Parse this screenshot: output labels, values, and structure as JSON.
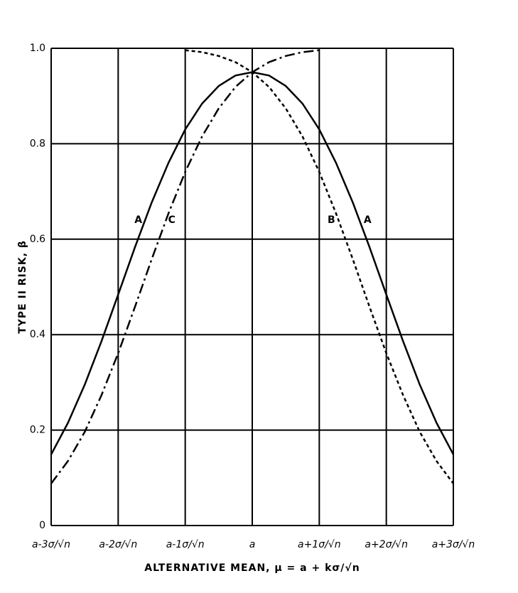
{
  "chart_data": {
    "type": "line",
    "x_label": "ALTERNATIVE MEAN, μ = a + kσ/√n",
    "y_label": "TYPE II RISK, β",
    "x": [
      -3,
      -2.75,
      -2.5,
      -2.25,
      -2,
      -1.75,
      -1.5,
      -1.25,
      -1,
      -0.75,
      -0.5,
      -0.25,
      0,
      0.25,
      0.5,
      0.75,
      1,
      1.25,
      1.5,
      1.75,
      2,
      2.25,
      2.5,
      2.75,
      3
    ],
    "series": [
      {
        "name": "A",
        "color": "#000000",
        "dash": "solid",
        "values": [
          0.149,
          0.215,
          0.295,
          0.386,
          0.484,
          0.583,
          0.677,
          0.76,
          0.83,
          0.884,
          0.921,
          0.943,
          0.95,
          0.943,
          0.921,
          0.884,
          0.83,
          0.76,
          0.677,
          0.583,
          0.484,
          0.386,
          0.295,
          0.215,
          0.149
        ]
      },
      {
        "name": "B",
        "color": "#000000",
        "dash": "dashed",
        "values": [
          null,
          null,
          null,
          null,
          null,
          null,
          null,
          null,
          0.996,
          0.992,
          0.984,
          0.971,
          0.95,
          0.919,
          0.874,
          0.815,
          0.741,
          0.654,
          0.558,
          0.458,
          0.361,
          0.273,
          0.196,
          0.135,
          0.088
        ]
      },
      {
        "name": "C",
        "color": "#000000",
        "dash": "dash-dot",
        "values": [
          0.088,
          0.135,
          0.196,
          0.273,
          0.361,
          0.458,
          0.558,
          0.654,
          0.741,
          0.815,
          0.874,
          0.919,
          0.95,
          0.971,
          0.984,
          0.992,
          0.996,
          null,
          null,
          null,
          null,
          null,
          null,
          null,
          null
        ]
      }
    ],
    "xlim": [
      -3,
      3
    ],
    "ylim": [
      0,
      1
    ],
    "xticks": [
      {
        "value": -3,
        "label": "a-3σ/√n"
      },
      {
        "value": -2,
        "label": "a-2σ/√n"
      },
      {
        "value": -1,
        "label": "a-1σ/√n"
      },
      {
        "value": 0,
        "label": "a"
      },
      {
        "value": 1,
        "label": "a+1σ/√n"
      },
      {
        "value": 2,
        "label": "a+2σ/√n"
      },
      {
        "value": 3,
        "label": "a+3σ/√n"
      }
    ],
    "yticks": [
      0,
      0.2,
      0.4,
      0.6,
      0.8,
      {
        "value": 1,
        "label": "1.0"
      }
    ],
    "grid": true
  }
}
